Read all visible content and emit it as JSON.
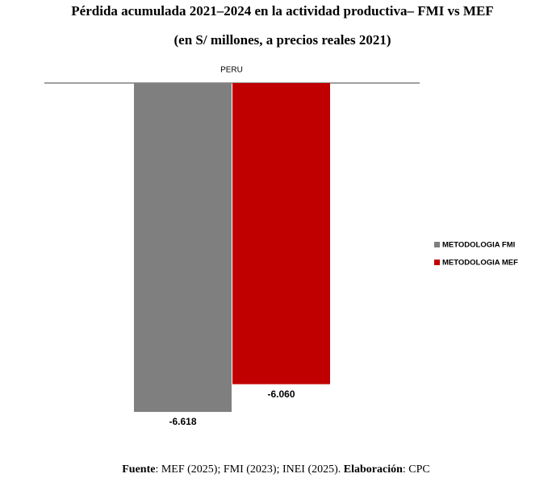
{
  "chart_data": {
    "type": "bar",
    "title": "Pérdida acumulada 2021–2024 en la actividad productiva– FMI vs MEF",
    "subtitle": "(en S/ millones, a precios reales 2021)",
    "categories": [
      "PERU"
    ],
    "series": [
      {
        "name": "METODOLOGIA FMI",
        "color": "#7f7f7f",
        "values": [
          -6618
        ],
        "value_labels": [
          "-6.618"
        ]
      },
      {
        "name": "METODOLOGIA MEF",
        "color": "#c00000",
        "values": [
          -6060
        ],
        "value_labels": [
          "-6.060"
        ]
      }
    ],
    "ylim": [
      -7000,
      0
    ],
    "legend": "right",
    "source": [
      {
        "text": "Fuente",
        "bold": true
      },
      {
        "text": ": MEF (2025); FMI (2023); INEI (2025). "
      },
      {
        "text": "Elaboración",
        "bold": true
      },
      {
        "text": ": CPC"
      }
    ]
  }
}
